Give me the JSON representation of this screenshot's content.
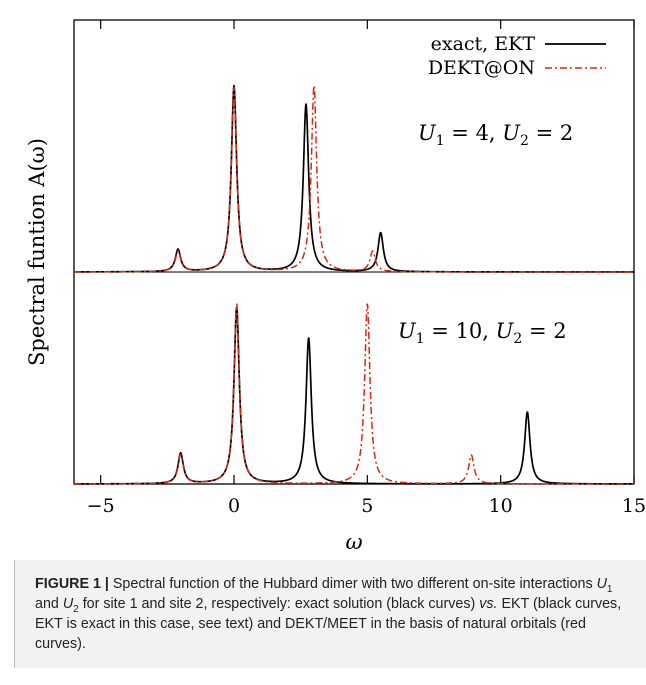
{
  "chart_data": {
    "type": "line",
    "xlabel": "ω",
    "ylabel": "Spectral funtion A(ω)",
    "xlim": [
      -6,
      15
    ],
    "xticks": [
      -5,
      0,
      5,
      10,
      15
    ],
    "xtick_labels": [
      "−5",
      "0",
      "5",
      "10",
      "15"
    ],
    "grid": false,
    "legend_position": "top-right",
    "legend": [
      {
        "label": "exact, EKT",
        "color": "#000000",
        "style": "solid"
      },
      {
        "label": "DEKT@ON",
        "color": "#d62a0e",
        "style": "dash-dot"
      }
    ],
    "panels": [
      {
        "annotation": {
          "parts": [
            "U",
            "1",
            " = 4, ",
            "U",
            "2",
            " = 2"
          ]
        },
        "series": [
          {
            "name": "exact, EKT",
            "peaks": [
              {
                "x": -2.1,
                "height": 0.12
              },
              {
                "x": 0.0,
                "height": 1.0
              },
              {
                "x": 2.7,
                "height": 0.9
              },
              {
                "x": 5.5,
                "height": 0.21
              }
            ]
          },
          {
            "name": "DEKT@ON",
            "peaks": [
              {
                "x": -2.1,
                "height": 0.11
              },
              {
                "x": 0.0,
                "height": 0.99
              },
              {
                "x": 3.0,
                "height": 1.0
              },
              {
                "x": 5.2,
                "height": 0.11
              }
            ]
          }
        ]
      },
      {
        "annotation": {
          "parts": [
            "U",
            "1",
            " = 10, ",
            "U",
            "2",
            " = 2"
          ]
        },
        "series": [
          {
            "name": "exact, EKT",
            "peaks": [
              {
                "x": -2.0,
                "height": 0.17
              },
              {
                "x": 0.1,
                "height": 0.98
              },
              {
                "x": 2.8,
                "height": 0.81
              },
              {
                "x": 11.0,
                "height": 0.4
              }
            ]
          },
          {
            "name": "DEKT@ON",
            "peaks": [
              {
                "x": -2.0,
                "height": 0.16
              },
              {
                "x": 0.1,
                "height": 1.0
              },
              {
                "x": 5.0,
                "height": 1.0
              },
              {
                "x": 8.9,
                "height": 0.16
              }
            ]
          }
        ]
      }
    ]
  },
  "caption": {
    "label": "FIGURE 1 |",
    "part1": " Spectral function of the Hubbard dimer with two different on-site interactions ",
    "u1_main": "U",
    "u1_sub": "1",
    "part2": " and ",
    "u2_main": "U",
    "u2_sub": "2",
    "part3": " for site 1 and site 2, respectively: exact solution (black curves) ",
    "vs": "vs.",
    "part4": " EKT (black curves, EKT is exact in this case, see text) and DEKT/MEET in the basis of natural orbitals (red curves)."
  }
}
